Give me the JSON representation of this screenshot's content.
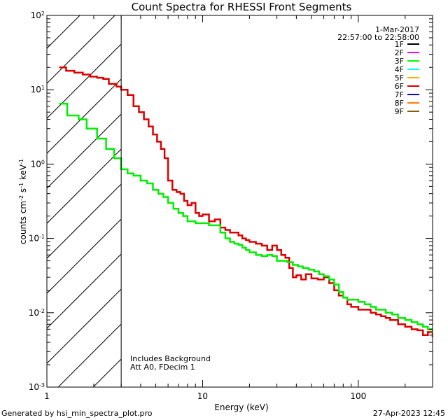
{
  "chart_data": {
    "type": "line",
    "title": "Count Spectra for RHESSI Front Segments",
    "xlabel": "Energy (keV)",
    "ylabel_parts": {
      "base": "counts cm",
      "exp1": "-2",
      "mid": " s",
      "exp2": "-1",
      "unit": " keV",
      "exp3": "-1"
    },
    "x_scale": "log",
    "y_scale": "log",
    "xlim": [
      1,
      300
    ],
    "ylim": [
      0.001,
      100
    ],
    "x_ticks": [
      {
        "value": 1,
        "label": "1"
      },
      {
        "value": 10,
        "label": "10"
      },
      {
        "value": 100,
        "label": "100"
      }
    ],
    "y_ticks": [
      {
        "value": 0.001,
        "base": "10",
        "exp": "-3"
      },
      {
        "value": 0.01,
        "base": "10",
        "exp": "-2"
      },
      {
        "value": 0.1,
        "base": "10",
        "exp": "-1"
      },
      {
        "value": 1,
        "base": "10",
        "exp": "0"
      },
      {
        "value": 10,
        "base": "10",
        "exp": "1"
      },
      {
        "value": 100,
        "base": "10",
        "exp": "2"
      }
    ],
    "shaded_region": {
      "x_min": 1,
      "x_max": 3,
      "style": "diagonal-hatch"
    },
    "date": "1-Mar-2017",
    "time_range": "22:57:00 to 22:58:00",
    "legend": [
      {
        "label": "1F",
        "color": "#000000"
      },
      {
        "label": "2F",
        "color": "#ff00ff"
      },
      {
        "label": "3F",
        "color": "#00ff00"
      },
      {
        "label": "4F",
        "color": "#00ffff"
      },
      {
        "label": "5F",
        "color": "#ffb000"
      },
      {
        "label": "6F",
        "color": "#dd0000"
      },
      {
        "label": "7F",
        "color": "#0000dd"
      },
      {
        "label": "8F",
        "color": "#ff8000"
      },
      {
        "label": "9F",
        "color": "#806000"
      }
    ],
    "annotations": [
      "Includes Background",
      "Att A0, FDecim 1"
    ],
    "series": [
      {
        "name": "6F",
        "color": "#dd0000",
        "points": [
          [
            1.2,
            20
          ],
          [
            1.33,
            18
          ],
          [
            1.5,
            17
          ],
          [
            1.7,
            16
          ],
          [
            1.9,
            15
          ],
          [
            2.1,
            14.5
          ],
          [
            2.3,
            14
          ],
          [
            2.5,
            12
          ],
          [
            2.8,
            11
          ],
          [
            3.0,
            10
          ],
          [
            3.3,
            8.5
          ],
          [
            3.6,
            6.0
          ],
          [
            3.9,
            5.0
          ],
          [
            4.2,
            4.0
          ],
          [
            4.5,
            3.2
          ],
          [
            4.8,
            2.5
          ],
          [
            5.1,
            2.0
          ],
          [
            5.4,
            1.6
          ],
          [
            5.7,
            1.2
          ],
          [
            6.0,
            0.6
          ],
          [
            6.4,
            0.45
          ],
          [
            6.8,
            0.42
          ],
          [
            7.2,
            0.4
          ],
          [
            7.6,
            0.32
          ],
          [
            8.0,
            0.28
          ],
          [
            8.5,
            0.3
          ],
          [
            9.0,
            0.22
          ],
          [
            9.5,
            0.2
          ],
          [
            10,
            0.21
          ],
          [
            11,
            0.17
          ],
          [
            12,
            0.18
          ],
          [
            13,
            0.14
          ],
          [
            14,
            0.13
          ],
          [
            15,
            0.12
          ],
          [
            16,
            0.12
          ],
          [
            17,
            0.11
          ],
          [
            18,
            0.1
          ],
          [
            19,
            0.095
          ],
          [
            20,
            0.09
          ],
          [
            22,
            0.085
          ],
          [
            24,
            0.08
          ],
          [
            26,
            0.07
          ],
          [
            28,
            0.08
          ],
          [
            30,
            0.07
          ],
          [
            32,
            0.06
          ],
          [
            34,
            0.055
          ],
          [
            36,
            0.04
          ],
          [
            38,
            0.03
          ],
          [
            40,
            0.032
          ],
          [
            43,
            0.028
          ],
          [
            46,
            0.033
          ],
          [
            50,
            0.029
          ],
          [
            55,
            0.028
          ],
          [
            60,
            0.03
          ],
          [
            65,
            0.025
          ],
          [
            70,
            0.02
          ],
          [
            75,
            0.017
          ],
          [
            80,
            0.016
          ],
          [
            85,
            0.013
          ],
          [
            90,
            0.012
          ],
          [
            100,
            0.011
          ],
          [
            110,
            0.011
          ],
          [
            120,
            0.01
          ],
          [
            130,
            0.0095
          ],
          [
            140,
            0.009
          ],
          [
            150,
            0.0085
          ],
          [
            160,
            0.008
          ],
          [
            180,
            0.007
          ],
          [
            200,
            0.0065
          ],
          [
            220,
            0.006
          ],
          [
            240,
            0.0058
          ],
          [
            260,
            0.005
          ],
          [
            280,
            0.0055
          ],
          [
            300,
            0.0048
          ]
        ]
      },
      {
        "name": "3F",
        "color": "#00ee00",
        "points": [
          [
            1.2,
            6.5
          ],
          [
            1.35,
            4.5
          ],
          [
            1.6,
            4.0
          ],
          [
            1.8,
            3.0
          ],
          [
            2.1,
            2.2
          ],
          [
            2.4,
            1.6
          ],
          [
            2.7,
            1.2
          ],
          [
            3.0,
            0.85
          ],
          [
            3.3,
            0.75
          ],
          [
            3.6,
            0.7
          ],
          [
            4.0,
            0.6
          ],
          [
            4.4,
            0.55
          ],
          [
            4.8,
            0.45
          ],
          [
            5.2,
            0.4
          ],
          [
            5.6,
            0.36
          ],
          [
            6.0,
            0.3
          ],
          [
            6.5,
            0.25
          ],
          [
            7.0,
            0.22
          ],
          [
            7.5,
            0.2
          ],
          [
            8.0,
            0.17
          ],
          [
            9.0,
            0.16
          ],
          [
            10,
            0.16
          ],
          [
            11,
            0.15
          ],
          [
            12,
            0.15
          ],
          [
            13,
            0.12
          ],
          [
            14,
            0.1
          ],
          [
            15,
            0.09
          ],
          [
            16,
            0.085
          ],
          [
            17,
            0.082
          ],
          [
            18,
            0.075
          ],
          [
            19,
            0.07
          ],
          [
            20,
            0.065
          ],
          [
            22,
            0.06
          ],
          [
            24,
            0.058
          ],
          [
            26,
            0.06
          ],
          [
            28,
            0.058
          ],
          [
            30,
            0.05
          ],
          [
            32,
            0.05
          ],
          [
            35,
            0.048
          ],
          [
            38,
            0.044
          ],
          [
            41,
            0.042
          ],
          [
            44,
            0.04
          ],
          [
            48,
            0.038
          ],
          [
            52,
            0.036
          ],
          [
            56,
            0.033
          ],
          [
            60,
            0.031
          ],
          [
            65,
            0.028
          ],
          [
            70,
            0.024
          ],
          [
            75,
            0.019
          ],
          [
            80,
            0.016
          ],
          [
            85,
            0.015
          ],
          [
            90,
            0.015
          ],
          [
            100,
            0.014
          ],
          [
            110,
            0.013
          ],
          [
            120,
            0.012
          ],
          [
            130,
            0.011
          ],
          [
            140,
            0.011
          ],
          [
            150,
            0.01
          ],
          [
            165,
            0.0095
          ],
          [
            180,
            0.0085
          ],
          [
            200,
            0.008
          ],
          [
            220,
            0.0075
          ],
          [
            240,
            0.007
          ],
          [
            260,
            0.0065
          ],
          [
            280,
            0.006
          ],
          [
            300,
            0.0055
          ]
        ]
      }
    ]
  },
  "footer": {
    "generator": "Generated by hsi_min_spectra_plot.pro",
    "timestamp": "27-Apr-2023 12:45"
  }
}
